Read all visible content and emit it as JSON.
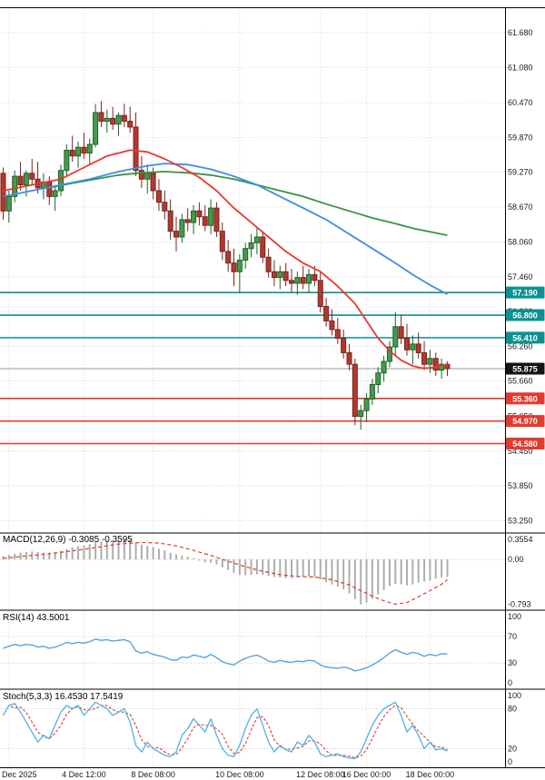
{
  "meta": {
    "colors": {
      "background": "#ffffff",
      "grid": "#d9d9d9",
      "axis_text": "#1a1a1a",
      "panel_border": "#000000",
      "candle_up_fill": "#459a4d",
      "candle_up_border": "#1e6227",
      "candle_down_fill": "#b03a30",
      "candle_down_border": "#7c221c",
      "ma_fast": "#e8392f",
      "ma_mid": "#3d8fe0",
      "ma_slow": "#3b9340",
      "resistance": "#0d9191",
      "support": "#e23a2e",
      "current_line": "#999999",
      "current_tag": "#141414",
      "macd_bar": "#aeaeae",
      "macd_signal": "#e23a2e",
      "rsi_line": "#4aa0e0",
      "stoch_k": "#4ab4e6",
      "stoch_d": "#e23a2e",
      "indicator_level": "#c9c9c9",
      "tag_text": "#ffffff"
    }
  },
  "chart_data": {
    "type": "candlestick",
    "timeframe": "4h",
    "x_labels": [
      {
        "i": 1,
        "text": "Dec 2025"
      },
      {
        "i": 14,
        "text": "4 Dec 12:00"
      },
      {
        "i": 26,
        "text": "8 Dec 08:00"
      },
      {
        "i": 41,
        "text": "10 Dec 08:00"
      },
      {
        "i": 55,
        "text": "12 Dec 08:00"
      },
      {
        "i": 63,
        "text": "16 Dec 00:00"
      },
      {
        "i": 74,
        "text": "18 Dec 00:00"
      }
    ],
    "main": {
      "ylim": [
        53.05,
        62.12
      ],
      "price_axis_labels": [
        "61.680",
        "61.080",
        "60.470",
        "59.870",
        "59.270",
        "58.670",
        "58.060",
        "57.460",
        "56.860",
        "56.260",
        "55.660",
        "55.050",
        "54.450",
        "53.850",
        "53.250"
      ],
      "resistance_levels": [
        {
          "value": 57.19,
          "label": "57.190"
        },
        {
          "value": 56.8,
          "label": "56.800"
        },
        {
          "value": 56.41,
          "label": "56.410"
        }
      ],
      "support_levels": [
        {
          "value": 55.36,
          "label": "55.360"
        },
        {
          "value": 54.97,
          "label": "54.970"
        },
        {
          "value": 54.58,
          "label": "54.580"
        }
      ],
      "current_price": {
        "value": 55.875,
        "label": "55.875"
      },
      "candles": [
        [
          59.25,
          59.35,
          58.45,
          58.6
        ],
        [
          58.6,
          58.95,
          58.4,
          58.85
        ],
        [
          58.85,
          59.3,
          58.75,
          59.2
        ],
        [
          59.2,
          59.45,
          58.95,
          59.05
        ],
        [
          59.05,
          59.3,
          58.85,
          59.25
        ],
        [
          59.25,
          59.5,
          59.05,
          59.15
        ],
        [
          59.15,
          59.45,
          58.9,
          59.0
        ],
        [
          59.0,
          59.25,
          58.8,
          59.1
        ],
        [
          59.1,
          59.2,
          58.7,
          58.85
        ],
        [
          58.85,
          59.05,
          58.6,
          58.95
        ],
        [
          58.95,
          59.4,
          58.85,
          59.3
        ],
        [
          59.3,
          59.75,
          59.2,
          59.65
        ],
        [
          59.65,
          59.9,
          59.45,
          59.55
        ],
        [
          59.55,
          59.8,
          59.35,
          59.7
        ],
        [
          59.7,
          59.95,
          59.5,
          59.6
        ],
        [
          59.6,
          59.85,
          59.4,
          59.75
        ],
        [
          59.75,
          60.45,
          59.7,
          60.3
        ],
        [
          60.3,
          60.5,
          60.05,
          60.15
        ],
        [
          60.15,
          60.35,
          59.95,
          60.2
        ],
        [
          60.2,
          60.4,
          60.0,
          60.1
        ],
        [
          60.1,
          60.3,
          59.9,
          60.25
        ],
        [
          60.25,
          60.45,
          60.05,
          60.15
        ],
        [
          60.15,
          60.4,
          59.95,
          60.05
        ],
        [
          60.05,
          60.3,
          59.2,
          59.3
        ],
        [
          59.3,
          59.55,
          59.0,
          59.15
        ],
        [
          59.15,
          59.4,
          58.9,
          59.25
        ],
        [
          59.25,
          59.35,
          58.8,
          58.95
        ],
        [
          58.95,
          59.15,
          58.6,
          58.75
        ],
        [
          58.75,
          58.95,
          58.45,
          58.6
        ],
        [
          58.6,
          58.8,
          58.1,
          58.25
        ],
        [
          58.25,
          58.5,
          57.9,
          58.15
        ],
        [
          58.15,
          58.55,
          58.05,
          58.45
        ],
        [
          58.45,
          58.65,
          58.25,
          58.4
        ],
        [
          58.4,
          58.7,
          58.2,
          58.6
        ],
        [
          58.6,
          58.75,
          58.35,
          58.5
        ],
        [
          58.5,
          58.7,
          58.25,
          58.35
        ],
        [
          58.35,
          58.8,
          58.2,
          58.65
        ],
        [
          58.65,
          58.75,
          58.15,
          58.25
        ],
        [
          58.25,
          58.4,
          57.75,
          57.9
        ],
        [
          57.9,
          58.1,
          57.55,
          57.7
        ],
        [
          57.7,
          57.95,
          57.3,
          57.55
        ],
        [
          57.55,
          57.85,
          57.2,
          57.75
        ],
        [
          57.75,
          58.05,
          57.6,
          57.95
        ],
        [
          57.95,
          58.2,
          57.8,
          58.05
        ],
        [
          58.05,
          58.3,
          57.85,
          58.15
        ],
        [
          58.15,
          58.25,
          57.7,
          57.8
        ],
        [
          57.8,
          57.95,
          57.45,
          57.55
        ],
        [
          57.55,
          57.75,
          57.3,
          57.45
        ],
        [
          57.45,
          57.65,
          57.25,
          57.55
        ],
        [
          57.55,
          57.7,
          57.3,
          57.4
        ],
        [
          57.4,
          57.6,
          57.2,
          57.35
        ],
        [
          57.35,
          57.55,
          57.15,
          57.45
        ],
        [
          57.45,
          57.65,
          57.25,
          57.35
        ],
        [
          57.35,
          57.6,
          57.2,
          57.5
        ],
        [
          57.5,
          57.65,
          57.3,
          57.4
        ],
        [
          57.4,
          57.55,
          56.85,
          56.95
        ],
        [
          56.95,
          57.1,
          56.6,
          56.7
        ],
        [
          56.7,
          56.9,
          56.45,
          56.55
        ],
        [
          56.55,
          56.75,
          56.3,
          56.4
        ],
        [
          56.4,
          56.55,
          56.05,
          56.15
        ],
        [
          56.15,
          56.3,
          55.85,
          55.95
        ],
        [
          55.95,
          56.05,
          54.9,
          55.05
        ],
        [
          55.05,
          55.25,
          54.82,
          55.15
        ],
        [
          55.15,
          55.45,
          54.95,
          55.35
        ],
        [
          55.35,
          55.7,
          55.25,
          55.6
        ],
        [
          55.6,
          55.9,
          55.45,
          55.8
        ],
        [
          55.8,
          56.1,
          55.65,
          56.0
        ],
        [
          56.0,
          56.35,
          55.9,
          56.25
        ],
        [
          56.25,
          56.85,
          56.1,
          56.6
        ],
        [
          56.6,
          56.8,
          56.3,
          56.4
        ],
        [
          56.4,
          56.65,
          56.1,
          56.2
        ],
        [
          56.2,
          56.45,
          55.95,
          56.3
        ],
        [
          56.3,
          56.5,
          56.05,
          56.15
        ],
        [
          56.15,
          56.35,
          55.85,
          55.95
        ],
        [
          55.95,
          56.2,
          55.8,
          56.05
        ],
        [
          56.05,
          56.15,
          55.75,
          55.85
        ],
        [
          55.85,
          56.05,
          55.7,
          55.95
        ],
        [
          55.95,
          56.0,
          55.75,
          55.875
        ]
      ],
      "ma_fast": {
        "points": [
          [
            0,
            58.95
          ],
          [
            5,
            59.05
          ],
          [
            10,
            59.15
          ],
          [
            14,
            59.35
          ],
          [
            18,
            59.55
          ],
          [
            22,
            59.65
          ],
          [
            25,
            59.62
          ],
          [
            28,
            59.5
          ],
          [
            31,
            59.35
          ],
          [
            34,
            59.18
          ],
          [
            37,
            58.95
          ],
          [
            40,
            58.65
          ],
          [
            43,
            58.4
          ],
          [
            46,
            58.15
          ],
          [
            49,
            57.9
          ],
          [
            52,
            57.7
          ],
          [
            55,
            57.55
          ],
          [
            58,
            57.3
          ],
          [
            61,
            57.0
          ],
          [
            63,
            56.7
          ],
          [
            65,
            56.4
          ],
          [
            67,
            56.18
          ],
          [
            69,
            56.02
          ],
          [
            71,
            55.92
          ],
          [
            73,
            55.88
          ],
          [
            75,
            55.9
          ],
          [
            77,
            55.95
          ]
        ]
      },
      "ma_mid": {
        "points": [
          [
            0,
            58.85
          ],
          [
            5,
            58.95
          ],
          [
            10,
            59.05
          ],
          [
            15,
            59.15
          ],
          [
            20,
            59.28
          ],
          [
            25,
            59.38
          ],
          [
            28,
            59.42
          ],
          [
            32,
            59.4
          ],
          [
            36,
            59.32
          ],
          [
            40,
            59.2
          ],
          [
            44,
            59.05
          ],
          [
            48,
            58.85
          ],
          [
            52,
            58.65
          ],
          [
            56,
            58.45
          ],
          [
            60,
            58.2
          ],
          [
            64,
            57.95
          ],
          [
            68,
            57.7
          ],
          [
            71,
            57.5
          ],
          [
            74,
            57.32
          ],
          [
            77,
            57.16
          ]
        ]
      },
      "ma_slow": {
        "points": [
          [
            8,
            59.0
          ],
          [
            12,
            59.08
          ],
          [
            16,
            59.15
          ],
          [
            20,
            59.22
          ],
          [
            24,
            59.26
          ],
          [
            28,
            59.28
          ],
          [
            32,
            59.26
          ],
          [
            36,
            59.22
          ],
          [
            40,
            59.15
          ],
          [
            44,
            59.05
          ],
          [
            48,
            58.95
          ],
          [
            52,
            58.85
          ],
          [
            56,
            58.72
          ],
          [
            60,
            58.6
          ],
          [
            64,
            58.48
          ],
          [
            68,
            58.38
          ],
          [
            71,
            58.3
          ],
          [
            74,
            58.24
          ],
          [
            77,
            58.18
          ]
        ]
      }
    },
    "indicators": {
      "macd": {
        "label": "MACD(12,26,9) -0.3085 -0.3595",
        "main_value": -0.3085,
        "signal_value": -0.3595,
        "ylim": [
          -0.88,
          0.45
        ],
        "axis_ticks": [
          [
            0.3554,
            "0.3554"
          ],
          [
            0,
            "0.00"
          ],
          [
            -0.793,
            "-0.793"
          ]
        ],
        "values": [
          0.06,
          0.08,
          0.1,
          0.12,
          0.13,
          0.14,
          0.13,
          0.12,
          0.12,
          0.13,
          0.15,
          0.18,
          0.21,
          0.23,
          0.25,
          0.27,
          0.3,
          0.32,
          0.33,
          0.33,
          0.34,
          0.3554,
          0.35,
          0.3,
          0.26,
          0.24,
          0.22,
          0.19,
          0.16,
          0.12,
          0.09,
          0.07,
          0.05,
          0.02,
          -0.02,
          -0.05,
          -0.06,
          -0.09,
          -0.14,
          -0.19,
          -0.24,
          -0.27,
          -0.28,
          -0.27,
          -0.26,
          -0.27,
          -0.29,
          -0.31,
          -0.32,
          -0.33,
          -0.33,
          -0.32,
          -0.31,
          -0.3,
          -0.31,
          -0.35,
          -0.4,
          -0.44,
          -0.48,
          -0.53,
          -0.6,
          -0.7,
          -0.793,
          -0.76,
          -0.7,
          -0.62,
          -0.54,
          -0.47,
          -0.43,
          -0.44,
          -0.46,
          -0.44,
          -0.41,
          -0.39,
          -0.37,
          -0.34,
          -0.32,
          -0.3085
        ],
        "signal_points": [
          [
            0,
            0.02
          ],
          [
            4,
            0.06
          ],
          [
            8,
            0.1
          ],
          [
            12,
            0.15
          ],
          [
            16,
            0.21
          ],
          [
            20,
            0.27
          ],
          [
            24,
            0.3
          ],
          [
            27,
            0.29
          ],
          [
            30,
            0.24
          ],
          [
            33,
            0.16
          ],
          [
            36,
            0.07
          ],
          [
            39,
            -0.03
          ],
          [
            42,
            -0.13
          ],
          [
            45,
            -0.21
          ],
          [
            48,
            -0.27
          ],
          [
            51,
            -0.3
          ],
          [
            54,
            -0.31
          ],
          [
            57,
            -0.36
          ],
          [
            60,
            -0.45
          ],
          [
            62,
            -0.55
          ],
          [
            64,
            -0.65
          ],
          [
            66,
            -0.73
          ],
          [
            68,
            -0.79
          ],
          [
            70,
            -0.76
          ],
          [
            72,
            -0.66
          ],
          [
            74,
            -0.55
          ],
          [
            76,
            -0.44
          ],
          [
            77,
            -0.3595
          ]
        ]
      },
      "rsi": {
        "label": "RSI(14) 43.5001",
        "value": 43.5001,
        "ylim": [
          -8,
          108
        ],
        "levels": [
          70,
          30
        ],
        "axis_ticks": [
          [
            100,
            "100"
          ],
          [
            70,
            "70"
          ],
          [
            30,
            "30"
          ],
          [
            0,
            "0"
          ]
        ],
        "values": [
          52,
          55,
          58,
          56,
          58,
          57,
          54,
          55,
          52,
          54,
          57,
          61,
          59,
          61,
          60,
          62,
          66,
          64,
          65,
          63,
          64,
          65,
          62,
          48,
          45,
          47,
          43,
          41,
          39,
          35,
          34,
          39,
          38,
          42,
          40,
          38,
          43,
          38,
          32,
          29,
          27,
          33,
          37,
          40,
          42,
          38,
          33,
          31,
          34,
          32,
          31,
          33,
          32,
          34,
          33,
          27,
          24,
          23,
          22,
          24,
          22,
          18,
          20,
          23,
          27,
          32,
          38,
          45,
          50,
          46,
          43,
          46,
          44,
          40,
          43,
          41,
          44,
          43.5
        ]
      },
      "stoch": {
        "label": "Stoch(5,3,3) 16.4530 17.5419",
        "k_value": 16.453,
        "d_value": 17.5419,
        "ylim": [
          -8,
          108
        ],
        "levels": [
          80,
          20
        ],
        "axis_ticks": [
          [
            100,
            "100"
          ],
          [
            80,
            "80"
          ],
          [
            20,
            "20"
          ],
          [
            0,
            "0"
          ]
        ],
        "k_values": [
          70,
          85,
          88,
          75,
          60,
          45,
          30,
          40,
          35,
          55,
          75,
          85,
          80,
          85,
          70,
          80,
          90,
          85,
          80,
          70,
          75,
          80,
          60,
          25,
          15,
          30,
          20,
          15,
          10,
          8,
          15,
          40,
          50,
          65,
          55,
          45,
          65,
          40,
          20,
          10,
          8,
          25,
          50,
          70,
          80,
          55,
          30,
          15,
          25,
          18,
          15,
          30,
          25,
          40,
          30,
          12,
          8,
          10,
          12,
          8,
          6,
          5,
          15,
          35,
          55,
          70,
          80,
          85,
          90,
          70,
          45,
          55,
          40,
          20,
          30,
          18,
          20,
          16.45
        ]
      }
    }
  }
}
